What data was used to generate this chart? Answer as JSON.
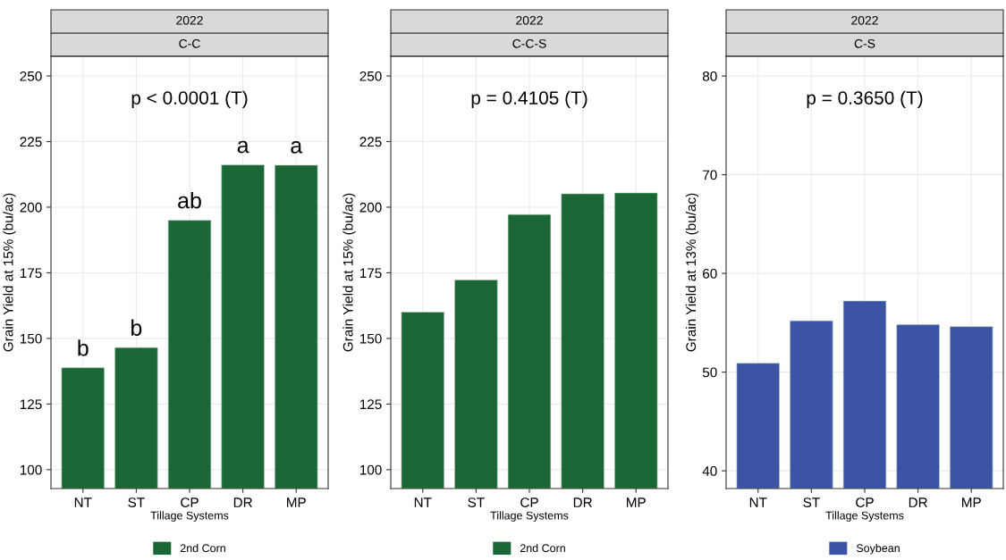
{
  "chart_data": [
    {
      "type": "bar",
      "title": "2022",
      "subtitle": "C-C",
      "xlabel": "Tillage Systems",
      "ylabel": "Grain Yield at 15% (bu/ac)",
      "categories": [
        "NT",
        "ST",
        "CP",
        "DR",
        "MP"
      ],
      "series": [
        {
          "name": "2nd Corn",
          "color": "#1a6634",
          "values": [
            138.8,
            146.5,
            195,
            216.1,
            216
          ]
        }
      ],
      "ylim": [
        92.8,
        257.5
      ],
      "yticks": [
        100,
        125,
        150,
        175,
        200,
        225,
        250
      ],
      "grid": true,
      "legend": "bottom",
      "annotations": [
        "p < 0.0001 (T)",
        {
          "text": "b",
          "x": "NT",
          "y": 138.8
        },
        {
          "text": "b",
          "x": "ST",
          "y": 146.5
        },
        {
          "text": "ab",
          "x": "CP",
          "y": 195
        },
        {
          "text": "a",
          "x": "DR",
          "y": 216.1
        },
        {
          "text": "a",
          "x": "MP",
          "y": 216
        }
      ]
    },
    {
      "type": "bar",
      "title": "2022",
      "subtitle": "C-C-S",
      "xlabel": "Tillage Systems",
      "ylabel": "Grain Yield at 15% (bu/ac)",
      "categories": [
        "NT",
        "ST",
        "CP",
        "DR",
        "MP"
      ],
      "series": [
        {
          "name": "2nd Corn",
          "color": "#1a6634",
          "values": [
            160,
            172.3,
            197.2,
            205.1,
            205.4
          ]
        }
      ],
      "ylim": [
        92.8,
        257.5
      ],
      "yticks": [
        100,
        125,
        150,
        175,
        200,
        225,
        250
      ],
      "grid": true,
      "legend": "bottom",
      "annotations": [
        "p = 0.4105 (T)"
      ]
    },
    {
      "type": "bar",
      "title": "2022",
      "subtitle": "C-S",
      "xlabel": "Tillage Systems",
      "ylabel": "Grain Yield at 13% (bu/ac)",
      "categories": [
        "NT",
        "ST",
        "CP",
        "DR",
        "MP"
      ],
      "series": [
        {
          "name": "Soybean",
          "color": "#3a53a4",
          "values": [
            50.9,
            55.2,
            57.2,
            54.8,
            54.6
          ]
        }
      ],
      "ylim": [
        38.2,
        82
      ],
      "yticks": [
        40,
        50,
        60,
        70,
        80
      ],
      "grid": true,
      "legend": "bottom",
      "annotations": [
        "p = 0.3650 (T)"
      ]
    }
  ]
}
